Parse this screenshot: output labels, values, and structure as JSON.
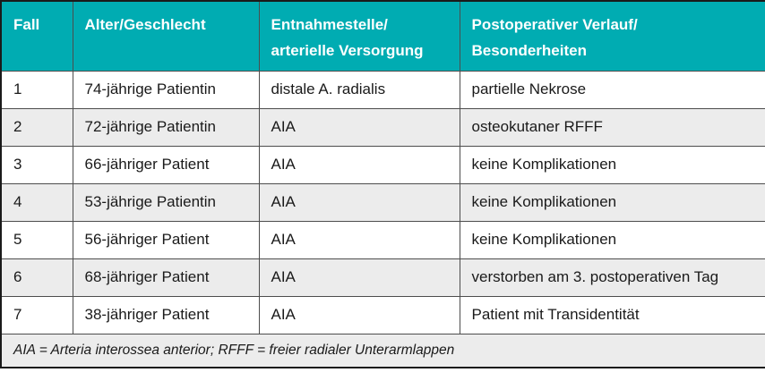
{
  "colors": {
    "header_bg": "#00acb2",
    "header_text": "#ffffff",
    "row_bg": "#ffffff",
    "row_alt_bg": "#ececec",
    "outer_border": "#1a1a1a",
    "inner_border": "#4d4d4d",
    "body_text": "#1a1a1a"
  },
  "table": {
    "headers": [
      [
        "Fall"
      ],
      [
        "Alter/Geschlecht"
      ],
      [
        "Entnahmestelle/",
        "arterielle Versorgung"
      ],
      [
        "Postoperativer Verlauf/",
        "Besonderheiten"
      ]
    ],
    "rows": [
      [
        "1",
        "74-jährige Patientin",
        "distale A. radialis",
        "partielle Nekrose"
      ],
      [
        "2",
        "72-jährige Patientin",
        "AIA",
        "osteokutaner RFFF"
      ],
      [
        "3",
        "66-jähriger Patient",
        "AIA",
        "keine Komplikationen"
      ],
      [
        "4",
        "53-jährige Patientin",
        "AIA",
        "keine Komplikationen"
      ],
      [
        "5",
        "56-jähriger Patient",
        "AIA",
        "keine Komplikationen"
      ],
      [
        "6",
        "68-jähriger Patient",
        "AIA",
        "verstorben am 3. postoperativen Tag"
      ],
      [
        "7",
        "38-jähriger Patient",
        "AIA",
        "Patient mit Transidentität"
      ]
    ],
    "footnote": "AIA = Arteria interossea anterior; RFFF = freier radialer Unterarmlappen"
  }
}
